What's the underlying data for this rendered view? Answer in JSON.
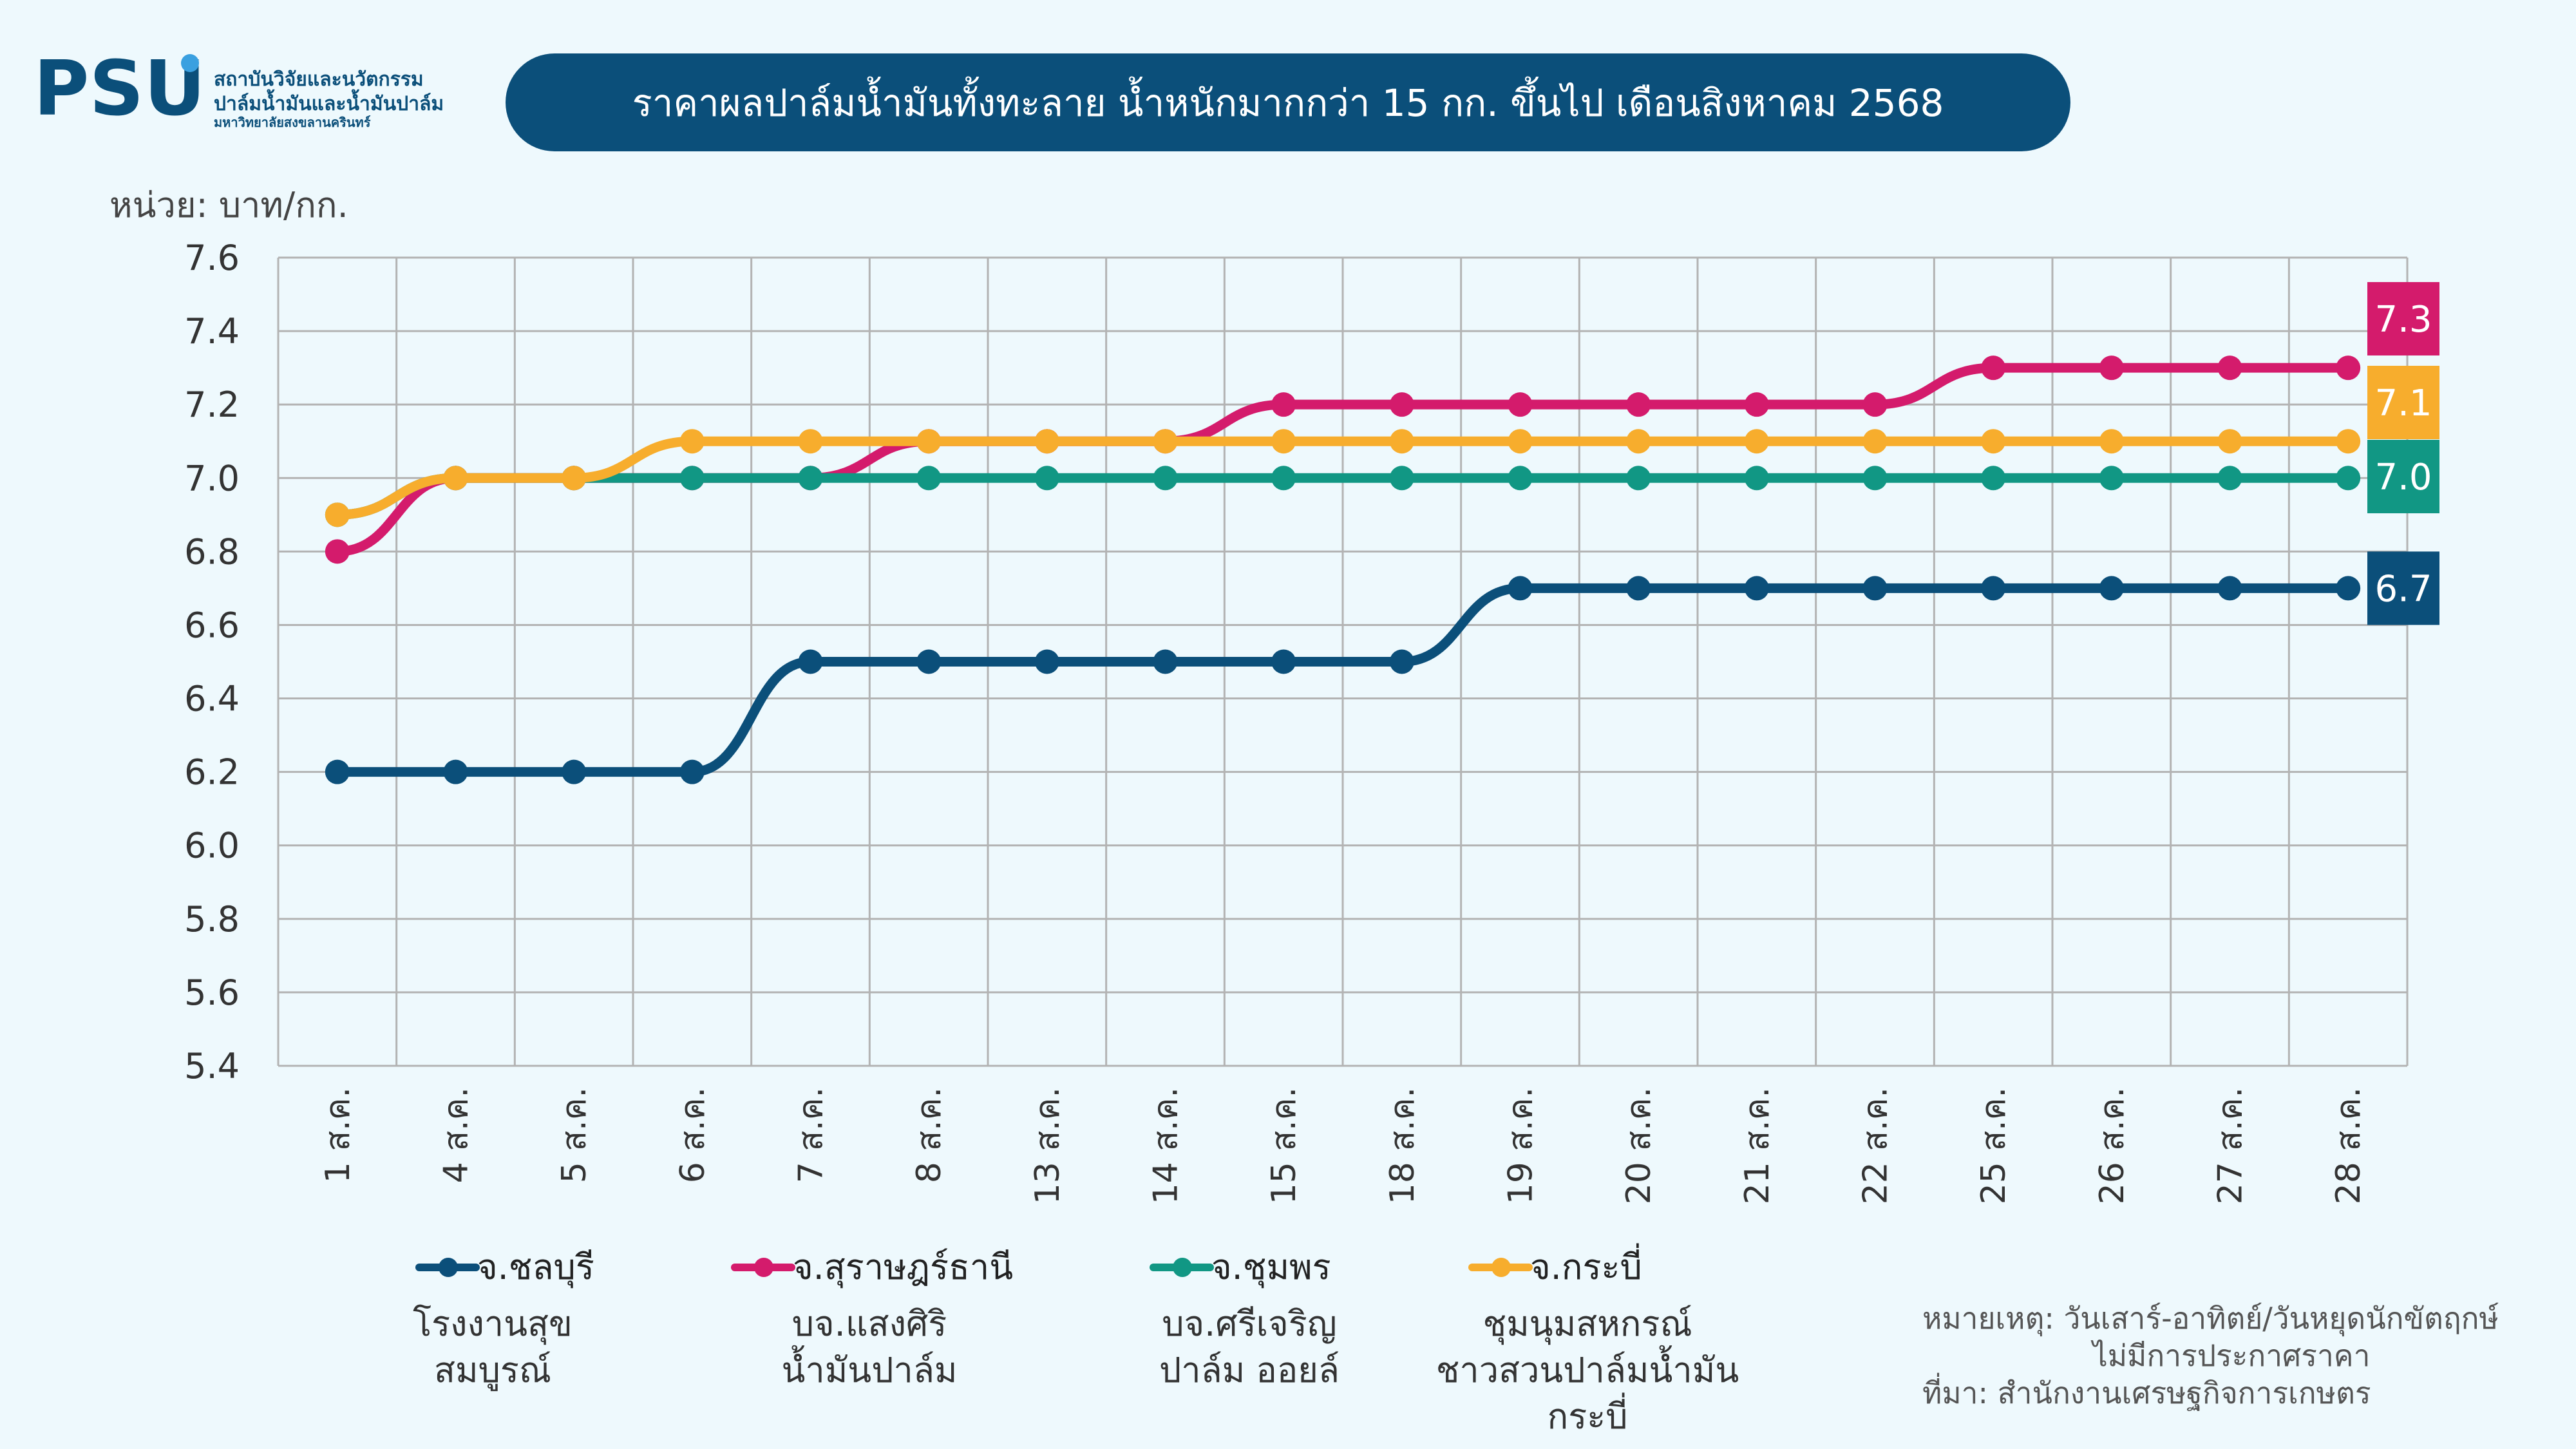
{
  "logo": {
    "brand": "PSU",
    "line1": "สถาบันวิจัยและนวัตกรรม",
    "line2": "ปาล์มน้ำมันและน้ำมันปาล์ม",
    "line3": "มหาวิทยาลัยสงขลานครินทร์"
  },
  "title": "ราคาผลปาล์มน้ำมันทั้งทะลาย น้ำหนักมากกว่า 15 กก. ขึ้นไป เดือนสิงหาคม 2568",
  "unit": "หน่วย: บาท/กก.",
  "colors": {
    "navy": "#0b4f7a",
    "magenta": "#d41b6c",
    "teal": "#119784",
    "orange": "#f7ad2d"
  },
  "chart_data": {
    "type": "line",
    "title": "ราคาผลปาล์มน้ำมันทั้งทะลาย น้ำหนักมากกว่า 15 กก. ขึ้นไป เดือนสิงหาคม 2568",
    "ylabel": "หน่วย: บาท/กก.",
    "ylim": [
      5.4,
      7.6
    ],
    "yticks": [
      "7.6",
      "7.4",
      "7.2",
      "7.0",
      "6.8",
      "6.6",
      "6.4",
      "6.2",
      "6.0",
      "5.8",
      "5.6",
      "5.4"
    ],
    "grid": true,
    "categories": [
      "1 ส.ค.",
      "4 ส.ค.",
      "5 ส.ค.",
      "6 ส.ค.",
      "7 ส.ค.",
      "8 ส.ค.",
      "13 ส.ค.",
      "14 ส.ค.",
      "15 ส.ค.",
      "18 ส.ค.",
      "19 ส.ค.",
      "20 ส.ค.",
      "21 ส.ค.",
      "22 ส.ค.",
      "25 ส.ค.",
      "26 ส.ค.",
      "27 ส.ค.",
      "28 ส.ค."
    ],
    "series": [
      {
        "name": "จ.ชลบุรี",
        "color": "#0b4f7a",
        "end_label": "6.7",
        "values": [
          6.2,
          6.2,
          6.2,
          6.2,
          6.5,
          6.5,
          6.5,
          6.5,
          6.5,
          6.5,
          6.7,
          6.7,
          6.7,
          6.7,
          6.7,
          6.7,
          6.7,
          6.7
        ]
      },
      {
        "name": "จ.สุราษฎร์ธานี",
        "color": "#d41b6c",
        "end_label": "7.3",
        "values": [
          6.8,
          7.0,
          7.0,
          7.0,
          7.0,
          7.1,
          7.1,
          7.1,
          7.2,
          7.2,
          7.2,
          7.2,
          7.2,
          7.2,
          7.3,
          7.3,
          7.3,
          7.3
        ]
      },
      {
        "name": "จ.ชุมพร",
        "color": "#119784",
        "end_label": "7.0",
        "values": [
          6.9,
          7.0,
          7.0,
          7.0,
          7.0,
          7.0,
          7.0,
          7.0,
          7.0,
          7.0,
          7.0,
          7.0,
          7.0,
          7.0,
          7.0,
          7.0,
          7.0,
          7.0
        ]
      },
      {
        "name": "จ.กระบี่",
        "color": "#f7ad2d",
        "end_label": "7.1",
        "values": [
          6.9,
          7.0,
          7.0,
          7.1,
          7.1,
          7.1,
          7.1,
          7.1,
          7.1,
          7.1,
          7.1,
          7.1,
          7.1,
          7.1,
          7.1,
          7.1,
          7.1,
          7.1
        ]
      }
    ]
  },
  "legend": [
    {
      "name": "จ.ชลบุรี",
      "sub": [
        "โรงงานสุข",
        "สมบูรณ์"
      ]
    },
    {
      "name": "จ.สุราษฎร์ธานี",
      "sub": [
        "บจ.แสงศิริ",
        "น้ำมันปาล์ม"
      ]
    },
    {
      "name": "จ.ชุมพร",
      "sub": [
        "บจ.ศรีเจริญ",
        "ปาล์ม ออยล์"
      ]
    },
    {
      "name": "จ.กระบี่",
      "sub": [
        "ชุมนุมสหกรณ์",
        "ชาวสวนปาล์มน้ำมัน",
        "กระบี่"
      ]
    }
  ],
  "note": {
    "line1": "หมายเหตุ: วันเสาร์-อาทิตย์/วันหยุดนักขัตฤกษ์",
    "line2": "ไม่มีการประกาศราคา",
    "line3": "ที่มา: สำนักงานเศรษฐกิจการเกษตร"
  }
}
